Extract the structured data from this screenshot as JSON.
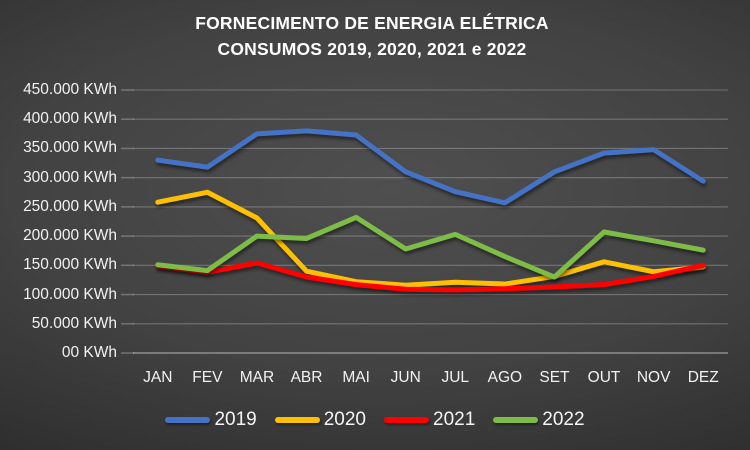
{
  "title": {
    "line1": "FORNECIMENTO DE ENERGIA ELÉTRICA",
    "line2": "CONSUMOS 2019, 2020, 2021 e 2022"
  },
  "y_axis": {
    "labels": [
      "450.000 KWh",
      "400.000 KWh",
      "350.000 KWh",
      "300.000 KWh",
      "250.000 KWh",
      "200.000 KWh",
      "150.000 KWh",
      "100.000 KWh",
      "50.000 KWh",
      "00 KWh"
    ]
  },
  "x_axis": {
    "labels": [
      "JAN",
      "FEV",
      "MAR",
      "ABR",
      "MAI",
      "JUN",
      "JUL",
      "AGO",
      "SET",
      "OUT",
      "NOV",
      "DEZ"
    ]
  },
  "legend": [
    {
      "label": "2019",
      "color": "#4472C4"
    },
    {
      "label": "2020",
      "color": "#FFC000"
    },
    {
      "label": "2021",
      "color": "#FF0000"
    },
    {
      "label": "2022",
      "color": "#7DBC46"
    }
  ],
  "colors": {
    "background_center": "#4f4f4f",
    "background_edge": "#212121",
    "text": "#f2f2f2",
    "gridline": "rgba(255,255,255,0.25)",
    "axis_line": "rgba(255,255,255,0.42)"
  },
  "chart_data": {
    "type": "line",
    "title": "FORNECIMENTO DE ENERGIA ELÉTRICA — CONSUMOS 2019, 2020, 2021 e 2022",
    "categories": [
      "JAN",
      "FEV",
      "MAR",
      "ABR",
      "MAI",
      "JUN",
      "JUL",
      "AGO",
      "SET",
      "OUT",
      "NOV",
      "DEZ"
    ],
    "series": [
      {
        "name": "2019",
        "color": "#4472C4",
        "values": [
          330000,
          318000,
          375000,
          380000,
          373000,
          310000,
          276000,
          257000,
          310000,
          342000,
          348000,
          294000
        ]
      },
      {
        "name": "2020",
        "color": "#FFC000",
        "values": [
          258000,
          275000,
          231000,
          140000,
          122000,
          116000,
          121000,
          118000,
          131000,
          156000,
          139000,
          147000
        ]
      },
      {
        "name": "2021",
        "color": "#FF0000",
        "values": [
          149000,
          138000,
          154000,
          130000,
          117000,
          109000,
          108000,
          110000,
          113000,
          117000,
          131000,
          150000
        ]
      },
      {
        "name": "2022",
        "color": "#7DBC46",
        "values": [
          151000,
          141000,
          200000,
          196000,
          232000,
          178000,
          203000,
          165000,
          130000,
          207000,
          192000,
          176000
        ]
      }
    ],
    "ylabel": "KWh",
    "ylim": [
      0,
      450000
    ],
    "ytick_step": 50000,
    "grid": true,
    "legend_position": "bottom"
  }
}
